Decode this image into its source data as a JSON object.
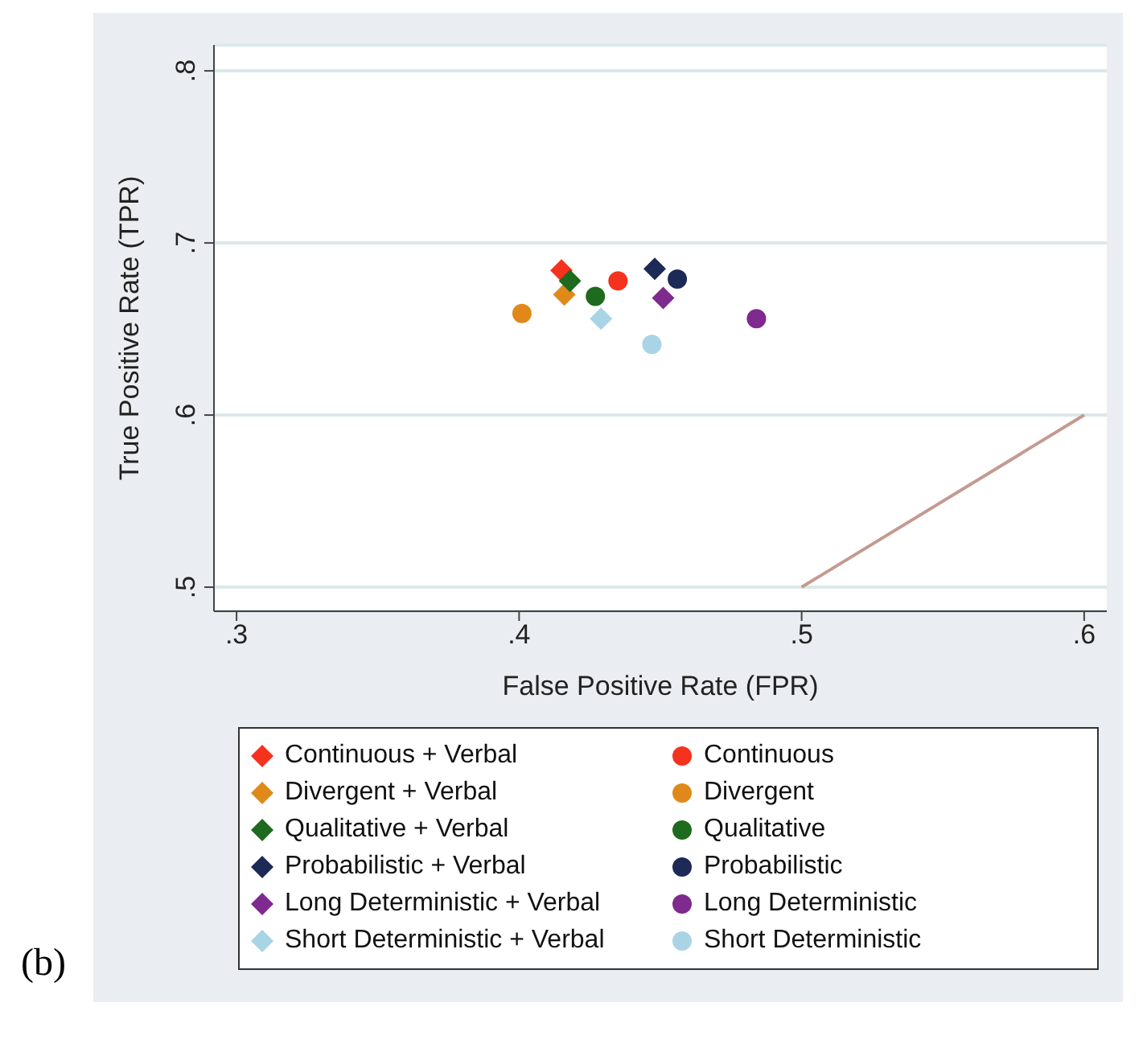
{
  "chart_data": {
    "type": "scatter",
    "xlabel": "False Positive Rate (FPR)",
    "ylabel": "True Positive Rate (TPR)",
    "xlim": [
      0.292,
      0.608
    ],
    "ylim": [
      0.486,
      0.815
    ],
    "xticks": [
      {
        "value": 0.3,
        "label": ".3"
      },
      {
        "value": 0.4,
        "label": ".4"
      },
      {
        "value": 0.5,
        "label": ".5"
      },
      {
        "value": 0.6,
        "label": ".6"
      }
    ],
    "yticks": [
      {
        "value": 0.5,
        "label": ".5"
      },
      {
        "value": 0.6,
        "label": ".6"
      },
      {
        "value": 0.7,
        "label": ".7"
      },
      {
        "value": 0.8,
        "label": ".8"
      }
    ],
    "grid": "y",
    "legend": "bottom",
    "annotations": [
      "(b)"
    ],
    "series": [
      {
        "name": "Continuous + Verbal",
        "color": "#f5321e",
        "marker": "diamond",
        "x": [
          0.415
        ],
        "values": [
          0.684
        ]
      },
      {
        "name": "Continuous",
        "color": "#f5321e",
        "marker": "circle",
        "x": [
          0.435
        ],
        "values": [
          0.678
        ]
      },
      {
        "name": "Divergent + Verbal",
        "color": "#e0891a",
        "marker": "diamond",
        "x": [
          0.416
        ],
        "values": [
          0.67
        ]
      },
      {
        "name": "Divergent",
        "color": "#e0891a",
        "marker": "circle",
        "x": [
          0.401
        ],
        "values": [
          0.659
        ]
      },
      {
        "name": "Qualitative + Verbal",
        "color": "#1e6a1e",
        "marker": "diamond",
        "x": [
          0.418
        ],
        "values": [
          0.678
        ]
      },
      {
        "name": "Qualitative",
        "color": "#1e6a1e",
        "marker": "circle",
        "x": [
          0.427
        ],
        "values": [
          0.669
        ]
      },
      {
        "name": "Probabilistic + Verbal",
        "color": "#1c2a55",
        "marker": "diamond",
        "x": [
          0.448
        ],
        "values": [
          0.685
        ]
      },
      {
        "name": "Probabilistic",
        "color": "#1c2a55",
        "marker": "circle",
        "x": [
          0.456
        ],
        "values": [
          0.679
        ]
      },
      {
        "name": "Long Deterministic + Verbal",
        "color": "#7e2a8e",
        "marker": "diamond",
        "x": [
          0.451
        ],
        "values": [
          0.668
        ]
      },
      {
        "name": "Long Deterministic",
        "color": "#7e2a8e",
        "marker": "circle",
        "x": [
          0.484
        ],
        "values": [
          0.656
        ]
      },
      {
        "name": "Short Deterministic + Verbal",
        "color": "#a9d4e6",
        "marker": "diamond",
        "x": [
          0.429
        ],
        "values": [
          0.656
        ]
      },
      {
        "name": "Short Deterministic",
        "color": "#a9d4e6",
        "marker": "circle",
        "x": [
          0.447
        ],
        "values": [
          0.641
        ]
      },
      {
        "type": "line",
        "color": "#c49a90",
        "x": [
          0.5,
          0.6
        ],
        "values": [
          0.5,
          0.6
        ]
      }
    ]
  }
}
